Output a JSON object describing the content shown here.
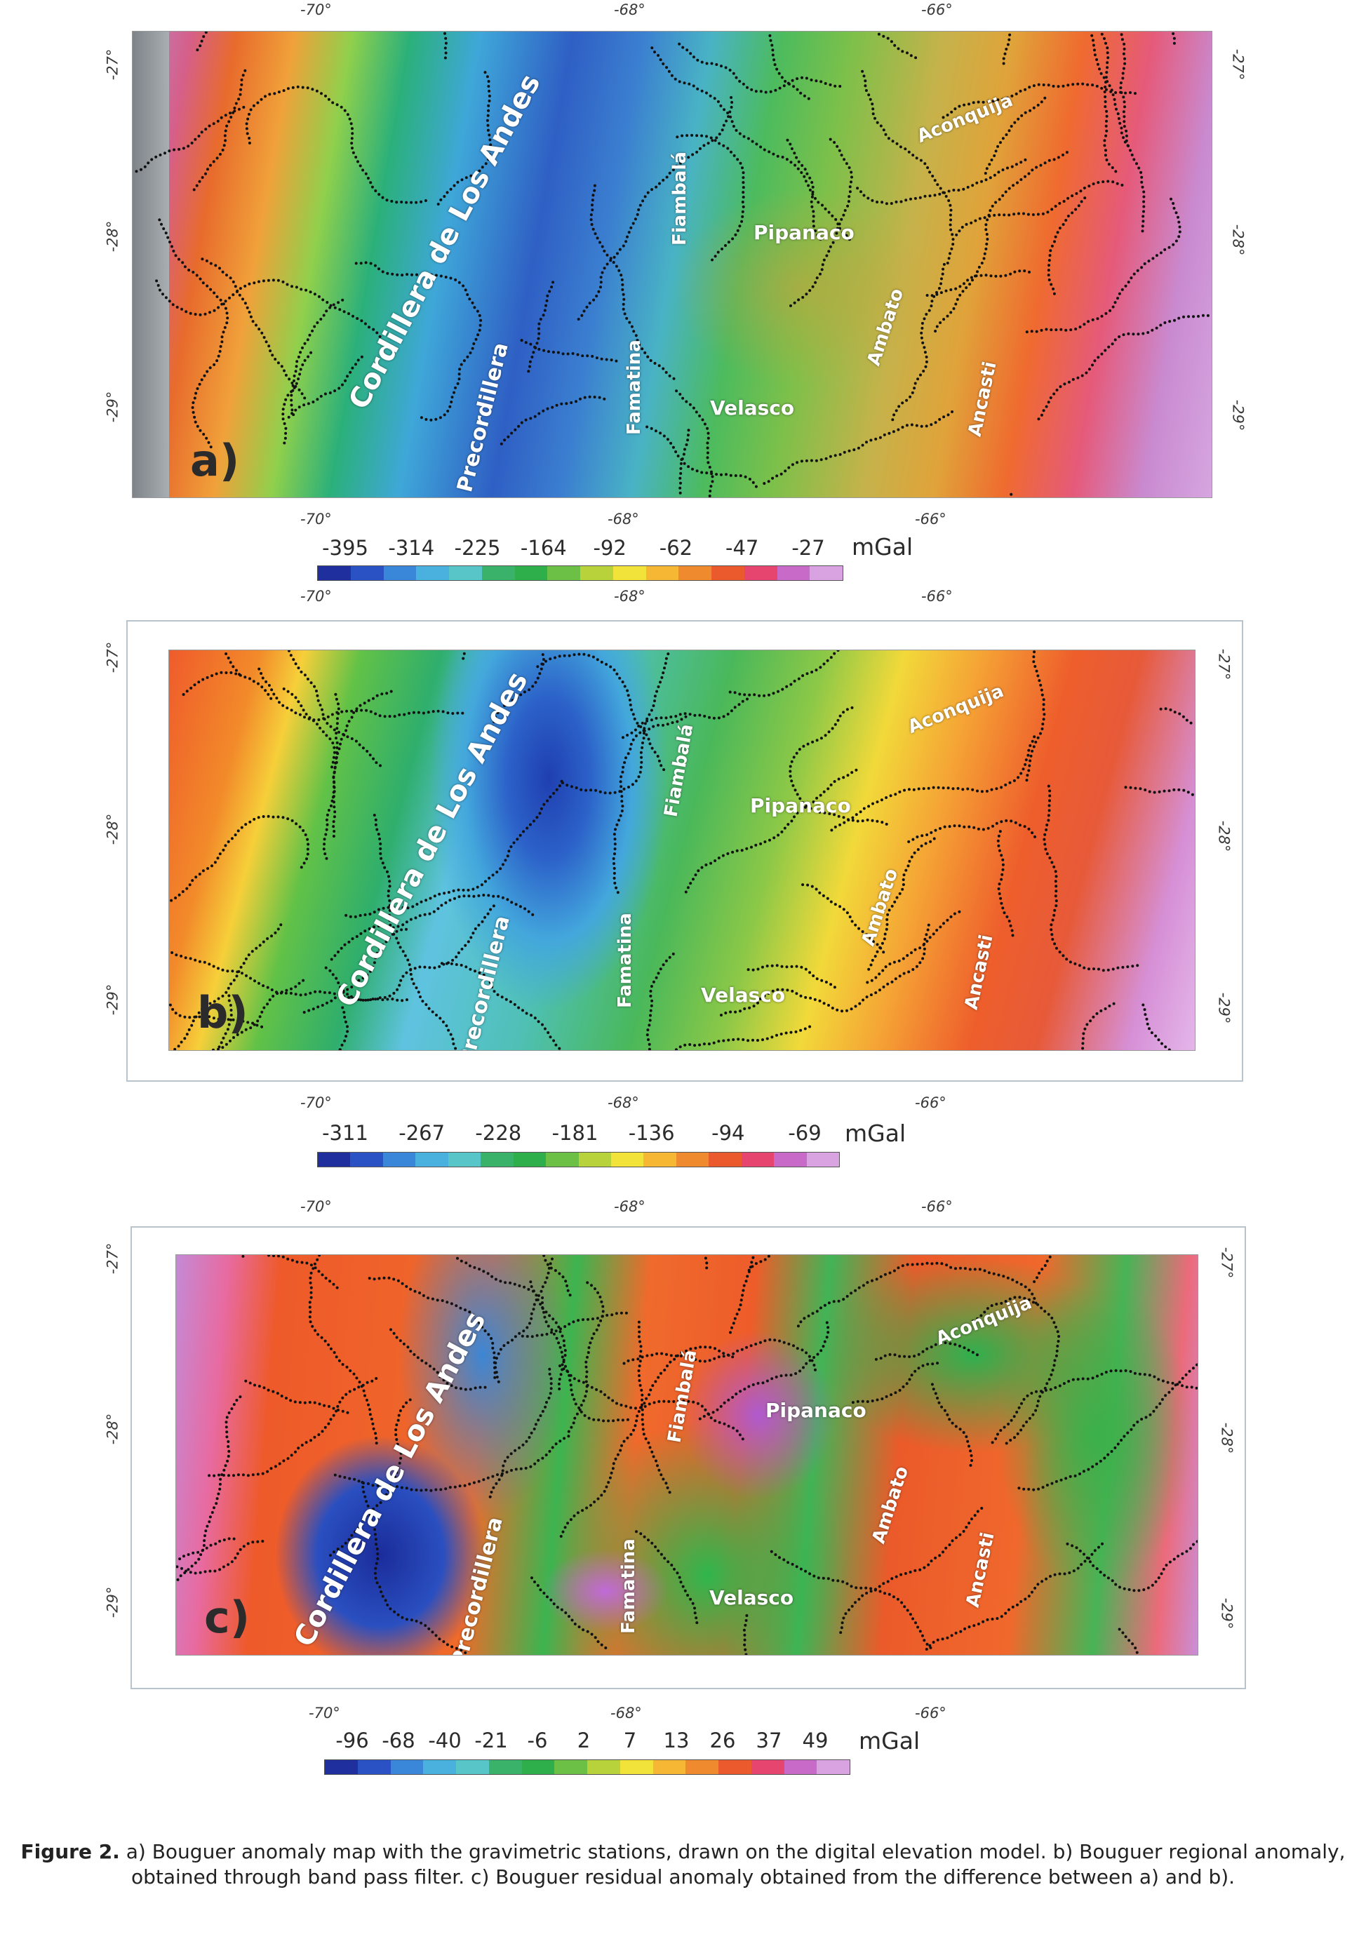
{
  "colors": {
    "frame": "#b9c3cc",
    "label_text": "#ffffff",
    "station_dots": "#111111"
  },
  "panels": [
    {
      "id": "a",
      "letter": "a)",
      "top_ticks": [
        "-70°",
        "-68°",
        "-66°"
      ],
      "bottom_ticks": [
        "-70°",
        "-68°",
        "-66°"
      ],
      "left_ticks": [
        "-27°",
        "-28°",
        "-29°"
      ],
      "right_ticks": [
        "-27°",
        "-28°",
        "-29°"
      ],
      "labels": [
        "Cordillera de Los Andes",
        "Precordillera",
        "Famatina",
        "Fiambalá",
        "Pipanaco",
        "Velasco",
        "Ambato",
        "Ancasti",
        "Aconquija"
      ],
      "colorbar": {
        "values": [
          "-395",
          "-314",
          "-225",
          "-164",
          "-92",
          "-62",
          "-47",
          "-27"
        ],
        "unit": "mGal",
        "colors": [
          "#1f2f9e",
          "#2a52c4",
          "#3a86d8",
          "#4ab0de",
          "#58c6c9",
          "#3bb26a",
          "#2fae4c",
          "#6cc046",
          "#b8d23c",
          "#f2e33a",
          "#f6b734",
          "#f08a2e",
          "#ea5a2c",
          "#e5456e",
          "#c86ac8",
          "#d9a2e0"
        ]
      }
    },
    {
      "id": "b",
      "letter": "b)",
      "top_ticks": [
        "-70°",
        "-68°",
        "-66°"
      ],
      "bottom_ticks": [
        "-70°",
        "-68°",
        "-66°"
      ],
      "left_ticks": [
        "-27°",
        "-28°",
        "-29°"
      ],
      "right_ticks": [
        "-27°",
        "-28°",
        "-29°"
      ],
      "labels": [
        "Cordillera de Los Andes",
        "Precordillera",
        "Famatina",
        "Fiambalá",
        "Pipanaco",
        "Velasco",
        "Ambato",
        "Ancasti",
        "Aconquija"
      ],
      "colorbar": {
        "values": [
          "-311",
          "-267",
          "-228",
          "-181",
          "-136",
          "-94",
          "-69"
        ],
        "unit": "mGal",
        "colors": [
          "#1f2f9e",
          "#2a52c4",
          "#3a86d8",
          "#4ab0de",
          "#58c6c9",
          "#3bb26a",
          "#2fae4c",
          "#6cc046",
          "#b8d23c",
          "#f2e33a",
          "#f6b734",
          "#f08a2e",
          "#ea5a2c",
          "#e5456e",
          "#c86ac8",
          "#d9a2e0"
        ]
      }
    },
    {
      "id": "c",
      "letter": "c)",
      "top_ticks": [
        "-70°",
        "-68°",
        "-66°"
      ],
      "bottom_ticks": [
        "-70°",
        "-68°",
        "-66°"
      ],
      "left_ticks": [
        "-27°",
        "-28°",
        "-29°"
      ],
      "right_ticks": [
        "-27°",
        "-28°",
        "-29°"
      ],
      "labels": [
        "Cordillera de Los Andes",
        "Precordillera",
        "Famatina",
        "Fiambalá",
        "Pipanaco",
        "Velasco",
        "Ambato",
        "Ancasti",
        "Aconquija"
      ],
      "colorbar": {
        "values": [
          "-96",
          "-68",
          "-40",
          "-21",
          "-6",
          "2",
          "7",
          "13",
          "26",
          "37",
          "49"
        ],
        "unit": "mGal",
        "colors": [
          "#1f2f9e",
          "#2a52c4",
          "#3a86d8",
          "#4ab0de",
          "#58c6c9",
          "#3bb26a",
          "#2fae4c",
          "#6cc046",
          "#b8d23c",
          "#f2e33a",
          "#f6b734",
          "#f08a2e",
          "#ea5a2c",
          "#e5456e",
          "#c86ac8",
          "#d9a2e0"
        ]
      }
    }
  ],
  "caption": {
    "label": "Figure 2.",
    "text": "a) Bouguer anomaly map with the gravimetric stations, drawn on the digital elevation model. b) Bouguer regional anomaly, obtained through band pass filter. c) Bouguer residual anomaly obtained from the difference between a) and b)."
  }
}
